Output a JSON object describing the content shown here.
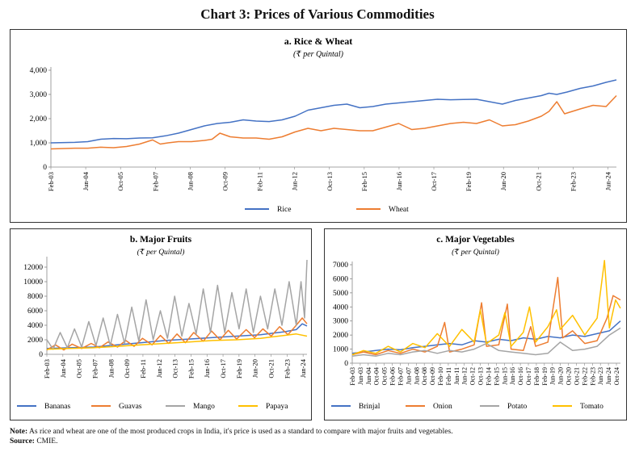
{
  "page": {
    "title": "Chart 3: Prices of Various Commodities",
    "note_label": "Note:",
    "note_text": "As rice and wheat are one of the most produced crops in India, it's price is used as a standard to compare with major fruits and vegetables.",
    "source_label": "Source:",
    "source_text": "CMIE."
  },
  "chart_data": [
    {
      "id": "a",
      "type": "line",
      "title": "a. Rice & Wheat",
      "subtitle": "(₹ per Quintal)",
      "ylim": [
        0,
        4000
      ],
      "yticks": [
        0,
        1000,
        2000,
        3000,
        4000
      ],
      "ytick_labels": [
        "0",
        "1,000",
        "2,000",
        "3,000",
        "4,000"
      ],
      "xlim": [
        2003.08,
        2024.9
      ],
      "x_tick_labels": [
        "Feb-03",
        "Jun-04",
        "Oct-05",
        "Feb-07",
        "Jun-08",
        "Oct-09",
        "Feb-11",
        "Jun-12",
        "Oct-13",
        "Feb-15",
        "Jun-16",
        "Oct-17",
        "Feb-19",
        "Jun-20",
        "Oct-21",
        "Feb-23",
        "Jun-24"
      ],
      "legend": "bottom",
      "series": [
        {
          "name": "Rice",
          "color": "#4472C4",
          "x": [
            2003.08,
            2004,
            2004.5,
            2005,
            2005.5,
            2006,
            2006.5,
            2007,
            2007.5,
            2008,
            2008.5,
            2009,
            2009.5,
            2010,
            2010.5,
            2011,
            2011.5,
            2012,
            2012.5,
            2013,
            2013.5,
            2014,
            2014.5,
            2015,
            2015.5,
            2016,
            2016.5,
            2017,
            2017.5,
            2018,
            2018.5,
            2019,
            2019.5,
            2020,
            2020.5,
            2021,
            2021.5,
            2022,
            2022.3,
            2022.6,
            2023,
            2023.5,
            2024,
            2024.5,
            2024.9
          ],
          "y": [
            1000,
            1020,
            1050,
            1150,
            1180,
            1170,
            1200,
            1210,
            1290,
            1400,
            1550,
            1700,
            1800,
            1850,
            1950,
            1900,
            1880,
            1950,
            2100,
            2350,
            2450,
            2550,
            2600,
            2450,
            2500,
            2600,
            2650,
            2700,
            2750,
            2800,
            2780,
            2790,
            2800,
            2700,
            2600,
            2750,
            2850,
            2950,
            3050,
            3000,
            3100,
            3250,
            3350,
            3500,
            3600
          ]
        },
        {
          "name": "Wheat",
          "color": "#ED7D31",
          "x": [
            2003.08,
            2004,
            2004.5,
            2005,
            2005.5,
            2006,
            2006.5,
            2007,
            2007.3,
            2007.6,
            2008,
            2008.5,
            2009,
            2009.3,
            2009.6,
            2010,
            2010.5,
            2011,
            2011.5,
            2012,
            2012.5,
            2013,
            2013.5,
            2014,
            2014.5,
            2015,
            2015.5,
            2016,
            2016.5,
            2017,
            2017.5,
            2018,
            2018.5,
            2019,
            2019.5,
            2020,
            2020.5,
            2021,
            2021.5,
            2022,
            2022.3,
            2022.6,
            2022.9,
            2023.2,
            2023.5,
            2024,
            2024.5,
            2024.9
          ],
          "y": [
            750,
            780,
            780,
            820,
            800,
            850,
            950,
            1120,
            950,
            1000,
            1050,
            1050,
            1100,
            1150,
            1400,
            1250,
            1200,
            1200,
            1150,
            1250,
            1450,
            1600,
            1500,
            1600,
            1550,
            1500,
            1500,
            1650,
            1800,
            1550,
            1600,
            1700,
            1800,
            1850,
            1800,
            1950,
            1700,
            1750,
            1900,
            2100,
            2300,
            2700,
            2200,
            2300,
            2400,
            2550,
            2500,
            2950
          ]
        }
      ]
    },
    {
      "id": "b",
      "type": "line",
      "title": "b. Major Fruits",
      "subtitle": "(₹ per Quintal)",
      "ylim": [
        0,
        13000
      ],
      "yticks": [
        0,
        2000,
        4000,
        6000,
        8000,
        10000,
        12000
      ],
      "ytick_labels": [
        "0",
        "2000",
        "4000",
        "6000",
        "8000",
        "10000",
        "12000"
      ],
      "xlim": [
        2003.08,
        2024.9
      ],
      "x_tick_labels": [
        "Feb-03",
        "Jun-04",
        "Oct-05",
        "Feb-07",
        "Jun-08",
        "Oct-09",
        "Feb-11",
        "Jun-12",
        "Oct-13",
        "Feb-15",
        "Jun-16",
        "Oct-17",
        "Feb-19",
        "Jun-20",
        "Oct-21",
        "Feb-23",
        "Jun-24"
      ],
      "legend": "bottom",
      "series": [
        {
          "name": "Bananas",
          "color": "#4472C4",
          "x": [
            2003.08,
            2005,
            2007,
            2009,
            2011,
            2013,
            2015,
            2017,
            2019,
            2021,
            2022,
            2023,
            2024,
            2024.5,
            2024.9
          ],
          "y": [
            800,
            900,
            1000,
            1300,
            1600,
            1900,
            2100,
            2300,
            2500,
            2700,
            2900,
            3100,
            3400,
            4200,
            3900
          ]
        },
        {
          "name": "Guavas",
          "color": "#ED7D31",
          "x": [
            2003.08,
            2003.8,
            2004.5,
            2005.2,
            2006,
            2006.8,
            2007.5,
            2008.2,
            2009,
            2009.7,
            2010.4,
            2011.1,
            2011.9,
            2012.6,
            2013.3,
            2014,
            2014.7,
            2015.4,
            2016.2,
            2016.9,
            2017.6,
            2018.3,
            2019,
            2019.8,
            2020.5,
            2021.2,
            2021.9,
            2022.6,
            2023.3,
            2024,
            2024.5,
            2024.9
          ],
          "y": [
            600,
            1300,
            600,
            1400,
            800,
            1500,
            900,
            1700,
            1000,
            1900,
            1100,
            2200,
            1300,
            2600,
            1500,
            2800,
            1600,
            3000,
            1800,
            3200,
            2000,
            3300,
            2100,
            3400,
            2300,
            3500,
            2500,
            3800,
            2700,
            4000,
            5000,
            4200
          ]
        },
        {
          "name": "Mango",
          "color": "#A5A5A5",
          "x": [
            2003.08,
            2003.6,
            2004.2,
            2004.8,
            2005.4,
            2006,
            2006.6,
            2007.2,
            2007.8,
            2008.4,
            2009,
            2009.6,
            2010.2,
            2010.8,
            2011.4,
            2012,
            2012.6,
            2013.2,
            2013.8,
            2014.4,
            2015,
            2015.6,
            2016.2,
            2016.8,
            2017.4,
            2018,
            2018.6,
            2019.2,
            2019.8,
            2020.4,
            2021,
            2021.6,
            2022.2,
            2022.8,
            2023.4,
            2024,
            2024.4,
            2024.7,
            2024.9
          ],
          "y": [
            2000,
            700,
            3000,
            900,
            3500,
            1000,
            4500,
            1200,
            5000,
            1200,
            5500,
            1500,
            6500,
            1800,
            7500,
            2000,
            6000,
            2200,
            8000,
            2500,
            7000,
            2800,
            9000,
            3000,
            9500,
            3000,
            8500,
            3500,
            9000,
            3000,
            8000,
            3500,
            9000,
            4000,
            10000,
            4000,
            10000,
            5000,
            13000
          ]
        },
        {
          "name": "Papaya",
          "color": "#FFC000",
          "x": [
            2003.08,
            2005,
            2007,
            2009,
            2011,
            2013,
            2015,
            2017,
            2019,
            2020,
            2021,
            2022,
            2023,
            2024,
            2024.9
          ],
          "y": [
            700,
            800,
            900,
            1100,
            1300,
            1500,
            1700,
            1900,
            2000,
            2100,
            2200,
            2400,
            2600,
            2800,
            2500
          ]
        }
      ]
    },
    {
      "id": "c",
      "type": "line",
      "title": "c. Major Vegetables",
      "subtitle": "(₹ per Quintal)",
      "ylim": [
        0,
        7000
      ],
      "yticks": [
        0,
        1000,
        2000,
        3000,
        4000,
        5000,
        6000,
        7000
      ],
      "ytick_labels": [
        "0",
        "1000",
        "2000",
        "3000",
        "4000",
        "5000",
        "6000",
        "7000"
      ],
      "xlim": [
        2003.08,
        2024.9
      ],
      "x_tick_labels": [
        "Feb-03",
        "Jun-04",
        "Oct-05",
        "Feb-07",
        "Jun-08",
        "Oct-09",
        "Feb-11",
        "Jun-12",
        "Oct-13",
        "Feb-15",
        "Jun-16",
        "Oct-17",
        "Feb-19",
        "Jun-20",
        "Oct-21",
        "Feb-23",
        "Jun-24",
        "Jun-03",
        "Oct-04",
        "Feb-06",
        "Jun-07",
        "Oct-08",
        "Feb-10",
        "Jun-11",
        "Oct-12",
        "Feb-14",
        "Jun-15",
        "Oct-16",
        "Feb-18",
        "Jun-19",
        "Oct-20",
        "Feb-22",
        "Jun-23",
        "Oct-24"
      ],
      "legend": "bottom",
      "series": [
        {
          "name": "Brinjal",
          "color": "#4472C4",
          "x": [
            2003.08,
            2004,
            2005,
            2006,
            2007,
            2008,
            2009,
            2010,
            2011,
            2012,
            2013,
            2014,
            2015,
            2016,
            2017,
            2018,
            2019,
            2020,
            2021,
            2022,
            2023,
            2024,
            2024.9
          ],
          "y": [
            700,
            800,
            900,
            1000,
            950,
            1100,
            1200,
            1300,
            1400,
            1300,
            1600,
            1500,
            1700,
            1600,
            1800,
            1700,
            1900,
            1800,
            2000,
            1900,
            2100,
            2300,
            3000
          ]
        },
        {
          "name": "Onion",
          "color": "#ED7D31",
          "x": [
            2003.08,
            2004,
            2005,
            2006,
            2007,
            2008,
            2009,
            2010,
            2010.6,
            2011,
            2012,
            2013,
            2013.6,
            2014,
            2015,
            2015.7,
            2016,
            2017,
            2017.6,
            2018,
            2019,
            2019.8,
            2020.2,
            2021,
            2022,
            2023,
            2023.8,
            2024.3,
            2024.9
          ],
          "y": [
            600,
            800,
            600,
            900,
            700,
            1000,
            800,
            1200,
            2900,
            800,
            1000,
            1300,
            4300,
            1200,
            1300,
            4200,
            1000,
            900,
            2600,
            1200,
            1500,
            6100,
            1800,
            2300,
            1400,
            1600,
            3200,
            4800,
            4500
          ]
        },
        {
          "name": "Potato",
          "color": "#A5A5A5",
          "x": [
            2003.08,
            2004,
            2005,
            2006,
            2007,
            2008,
            2009,
            2010,
            2011,
            2012,
            2013,
            2014,
            2015,
            2016,
            2017,
            2018,
            2019,
            2020,
            2021,
            2022,
            2023,
            2024,
            2024.9
          ],
          "y": [
            500,
            600,
            500,
            700,
            600,
            800,
            900,
            700,
            900,
            800,
            1000,
            1400,
            900,
            800,
            700,
            600,
            700,
            1500,
            900,
            1000,
            1200,
            2000,
            2500
          ]
        },
        {
          "name": "Tomato",
          "color": "#FFC000",
          "x": [
            2003.08,
            2004,
            2005,
            2006,
            2007,
            2008,
            2009,
            2010,
            2011,
            2012,
            2013,
            2013.5,
            2014,
            2015,
            2015.5,
            2016,
            2017,
            2017.5,
            2018,
            2019,
            2019.7,
            2020,
            2021,
            2022,
            2023,
            2023.6,
            2024,
            2024.5,
            2024.9
          ],
          "y": [
            600,
            900,
            700,
            1200,
            800,
            1400,
            1100,
            2100,
            1200,
            2400,
            1500,
            3800,
            1400,
            2000,
            3600,
            1200,
            2200,
            4000,
            1500,
            2600,
            3800,
            2400,
            3400,
            2000,
            3200,
            7300,
            2500,
            4500,
            3900
          ]
        }
      ]
    }
  ]
}
